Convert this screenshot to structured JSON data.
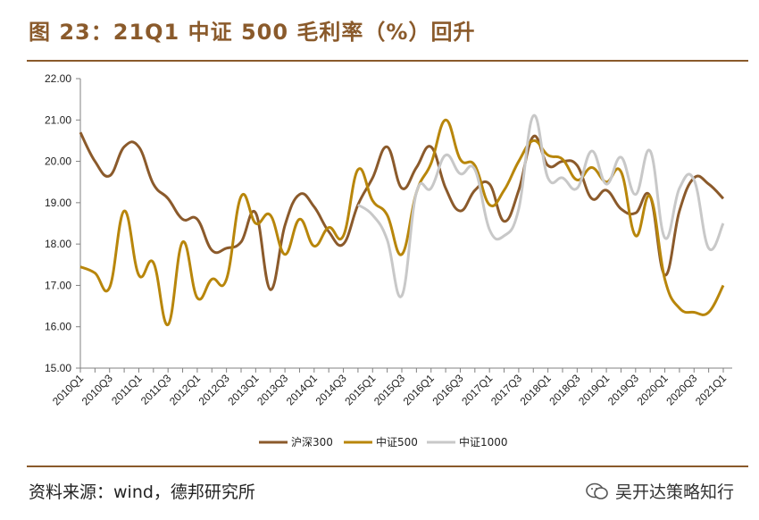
{
  "header": {
    "title": "图 23：21Q1 中证 500 毛利率（%）回升"
  },
  "footer": {
    "source": "资料来源：wind，德邦研究所",
    "watermark": "吴开达策略知行",
    "watermark_icon": "wechat-icon"
  },
  "chart_data": {
    "type": "line",
    "title": "21Q1 中证 500 毛利率（%）回升",
    "xlabel": "",
    "ylabel": "",
    "ylim": [
      15,
      22
    ],
    "yticks": [
      "15.00",
      "16.00",
      "17.00",
      "18.00",
      "19.00",
      "20.00",
      "21.00",
      "22.00"
    ],
    "categories": [
      "2010Q1",
      "2010Q2",
      "2010Q3",
      "2010Q4",
      "2011Q1",
      "2011Q2",
      "2011Q3",
      "2011Q4",
      "2012Q1",
      "2012Q2",
      "2012Q3",
      "2012Q4",
      "2013Q1",
      "2013Q2",
      "2013Q3",
      "2013Q4",
      "2014Q1",
      "2014Q2",
      "2014Q3",
      "2014Q4",
      "2015Q1",
      "2015Q2",
      "2015Q3",
      "2015Q4",
      "2016Q1",
      "2016Q2",
      "2016Q3",
      "2016Q4",
      "2017Q1",
      "2017Q2",
      "2017Q3",
      "2017Q4",
      "2018Q1",
      "2018Q2",
      "2018Q3",
      "2018Q4",
      "2019Q1",
      "2019Q2",
      "2019Q3",
      "2019Q4",
      "2020Q1",
      "2020Q2",
      "2020Q3",
      "2020Q4",
      "2021Q1"
    ],
    "xtick_labels": [
      "2010Q1",
      "",
      "2010Q3",
      "",
      "2011Q1",
      "",
      "2011Q3",
      "",
      "2012Q1",
      "",
      "2012Q3",
      "",
      "2013Q1",
      "",
      "2013Q3",
      "",
      "2014Q1",
      "",
      "2014Q3",
      "",
      "2015Q1",
      "",
      "2015Q3",
      "",
      "2016Q1",
      "",
      "2016Q3",
      "",
      "2017Q1",
      "",
      "2017Q3",
      "",
      "2018Q1",
      "",
      "2018Q3",
      "",
      "2019Q1",
      "",
      "2019Q3",
      "",
      "2020Q1",
      "",
      "2020Q3",
      "",
      "2021Q1"
    ],
    "legend_position": "bottom-center",
    "series": [
      {
        "name": "沪深300",
        "color": "#8b5a2b",
        "values": [
          20.7,
          20.0,
          19.65,
          20.35,
          20.35,
          19.45,
          19.1,
          18.6,
          18.6,
          17.85,
          17.9,
          18.05,
          18.75,
          16.9,
          18.45,
          19.2,
          18.9,
          18.3,
          18.0,
          18.95,
          19.6,
          20.35,
          19.35,
          19.85,
          20.35,
          19.35,
          18.8,
          19.3,
          19.45,
          18.55,
          19.3,
          20.6,
          19.9,
          20.0,
          19.9,
          19.1,
          19.3,
          18.85,
          18.75,
          19.15,
          17.25,
          18.8,
          19.6,
          19.45,
          19.1
        ]
      },
      {
        "name": "中证500",
        "color": "#b8860b",
        "values": [
          17.45,
          17.3,
          16.95,
          18.8,
          17.25,
          17.55,
          16.05,
          18.05,
          16.7,
          17.15,
          17.15,
          19.15,
          18.5,
          18.7,
          17.75,
          18.6,
          17.95,
          18.4,
          18.2,
          19.8,
          19.05,
          18.7,
          17.75,
          19.25,
          19.95,
          21.0,
          20.05,
          19.9,
          18.95,
          19.3,
          20.0,
          20.5,
          20.15,
          20.05,
          19.55,
          19.85,
          19.5,
          19.75,
          18.2,
          19.15,
          17.15,
          16.45,
          16.35,
          16.35,
          17.0
        ]
      },
      {
        "name": "中证1000",
        "color": "#c8c8c8",
        "values": [
          null,
          null,
          null,
          null,
          null,
          null,
          null,
          null,
          null,
          null,
          null,
          null,
          null,
          null,
          null,
          null,
          null,
          null,
          null,
          18.95,
          18.7,
          18.1,
          16.75,
          19.25,
          19.35,
          20.15,
          19.7,
          19.8,
          18.35,
          18.2,
          18.85,
          21.1,
          19.6,
          19.6,
          19.35,
          20.25,
          19.45,
          20.1,
          19.2,
          20.25,
          18.15,
          19.35,
          19.55,
          17.9,
          18.5
        ]
      }
    ]
  }
}
